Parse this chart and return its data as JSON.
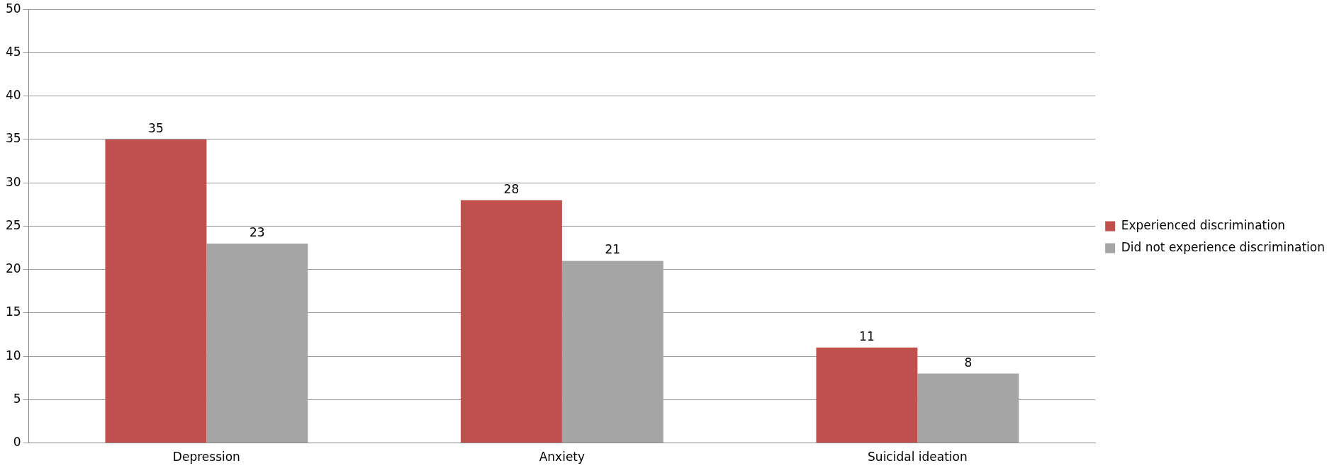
{
  "chart_data": {
    "type": "bar",
    "categories": [
      "Depression",
      "Anxiety",
      "Suicidal ideation"
    ],
    "series": [
      {
        "name": "Experienced discrimination",
        "color": "#c0504d",
        "values": [
          35,
          28,
          11
        ]
      },
      {
        "name": "Did not experience discrimination",
        "color": "#a5a5a5",
        "values": [
          23,
          21,
          8
        ]
      }
    ],
    "ylim": [
      0,
      50
    ],
    "yticks": [
      0,
      5,
      10,
      15,
      20,
      25,
      30,
      35,
      40,
      45,
      50
    ],
    "grid": "y",
    "legend": "right",
    "data_labels": true
  }
}
